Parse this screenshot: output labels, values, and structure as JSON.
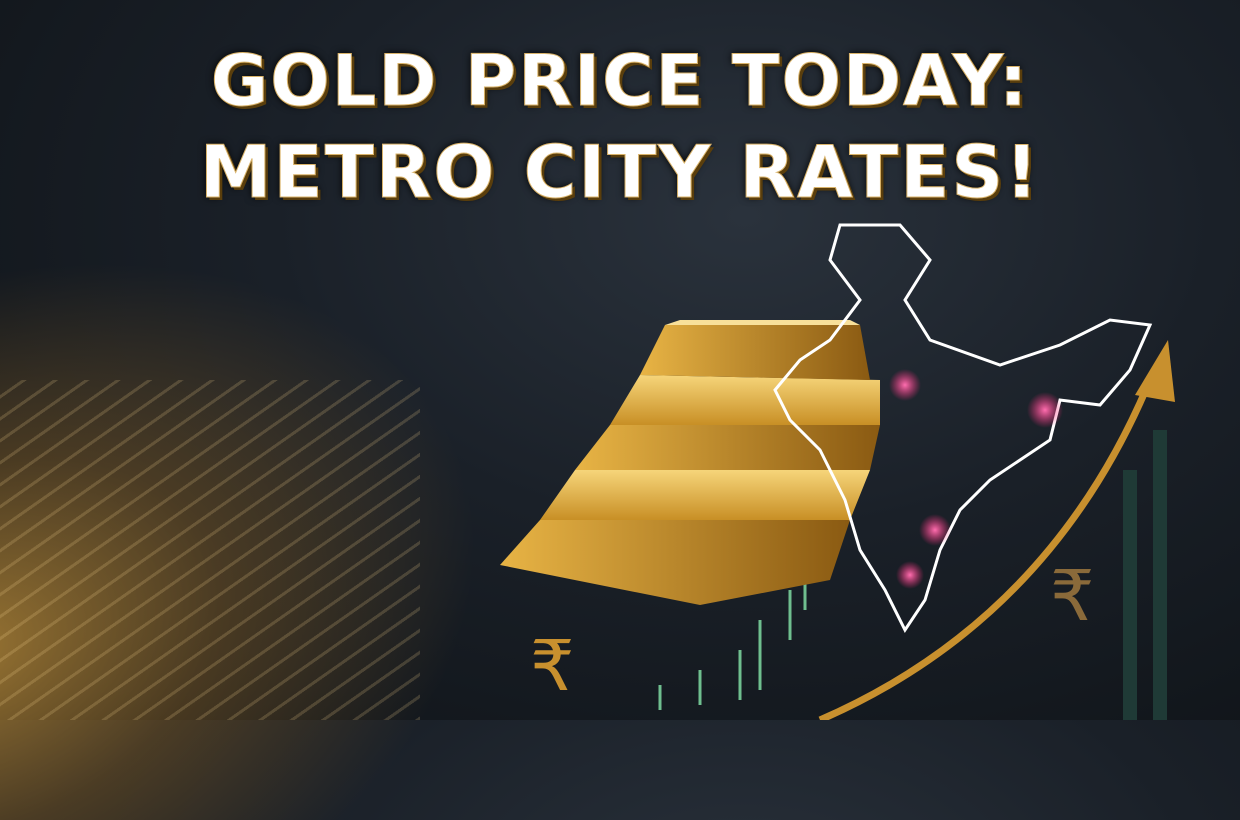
{
  "headline": {
    "line1": "GOLD PRICE TODAY:",
    "line2": "METRO CITY RATES!"
  },
  "icons": [
    "rupee-icon",
    "gold-bars",
    "india-map",
    "up-arrow"
  ],
  "colors": {
    "gold": "#d8a53a",
    "background": "#1a2028",
    "map_line": "#ffffff",
    "city_marker": "#ff3a8a"
  }
}
